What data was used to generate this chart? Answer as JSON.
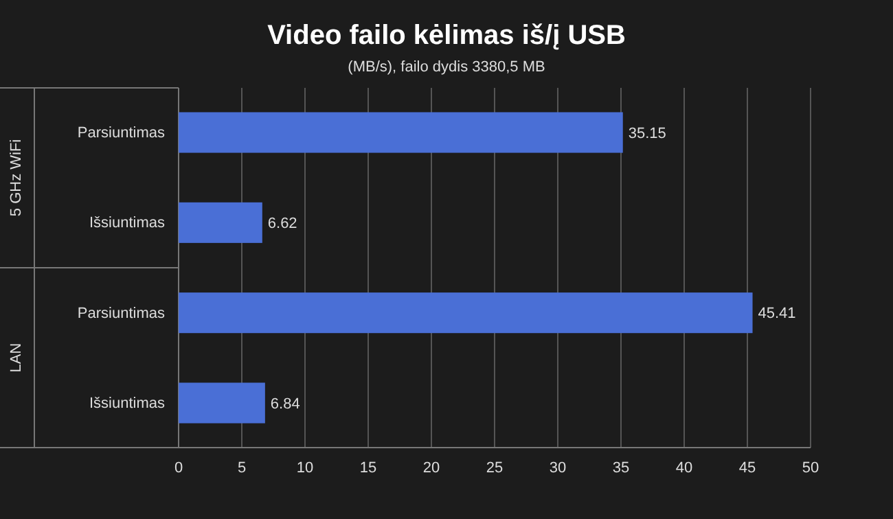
{
  "chart_data": {
    "type": "bar",
    "orientation": "horizontal",
    "title": "Video failo kėlimas iš/į USB",
    "subtitle": "(MB/s), failo dydis 3380,5 MB",
    "categories": [
      "Parsiuntimas",
      "Išsiuntimas",
      "Parsiuntimas",
      "Išsiuntimas"
    ],
    "values": [
      35.15,
      6.62,
      45.41,
      6.84
    ],
    "color": "#4a6fd6",
    "xlim": [
      0,
      50
    ],
    "xticks": [
      0,
      5,
      10,
      15,
      20,
      25,
      30,
      35,
      40,
      45,
      50
    ],
    "grid": "x",
    "data_labels": true,
    "annotations": [
      "5 GHz WiFi",
      "LAN"
    ]
  }
}
